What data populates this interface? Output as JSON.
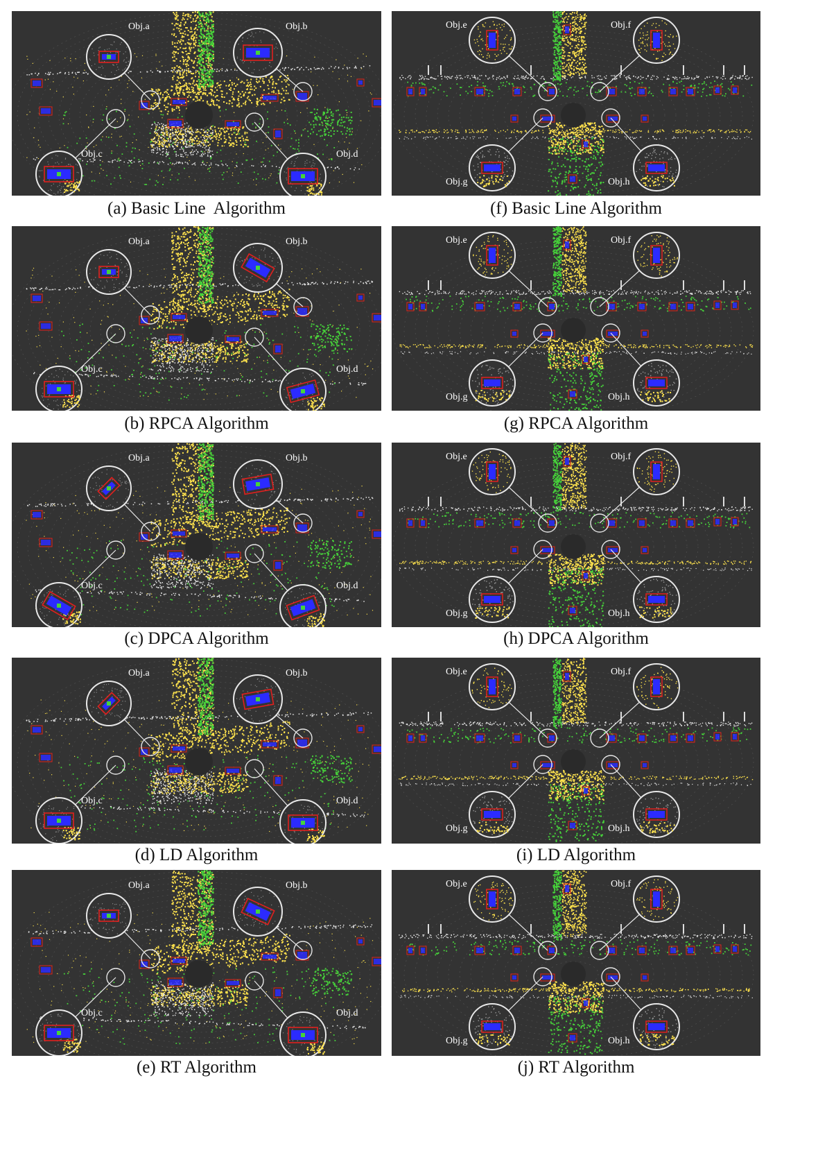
{
  "colors": {
    "panel_background": "#333333",
    "road_points": "#ffe34d",
    "vegetation_points": "#46d23a",
    "ground_points": "#e6e6e6",
    "object_points": "#2b2bff",
    "bounding_box": "#e0201e",
    "magnifier_ring": "#e8e8e8"
  },
  "columns": [
    {
      "scene": "left-intersection",
      "object_labels": [
        "Obj.a",
        "Obj.b",
        "Obj.c",
        "Obj.d"
      ],
      "panels": [
        {
          "caption": "(a) Basic Line  Algorithm"
        },
        {
          "caption": "(b) RPCA Algorithm"
        },
        {
          "caption": "(c) DPCA Algorithm"
        },
        {
          "caption": "(d) LD Algorithm"
        },
        {
          "caption": "(e) RT Algorithm"
        }
      ]
    },
    {
      "scene": "right-intersection",
      "object_labels": [
        "Obj.e",
        "Obj.f",
        "Obj.g",
        "Obj.h"
      ],
      "panels": [
        {
          "caption": "(f) Basic Line Algorithm"
        },
        {
          "caption": "(g) RPCA Algorithm"
        },
        {
          "caption": "(h) DPCA Algorithm"
        },
        {
          "caption": "(i) LD Algorithm"
        },
        {
          "caption": "(j) RT Algorithm"
        }
      ]
    }
  ]
}
